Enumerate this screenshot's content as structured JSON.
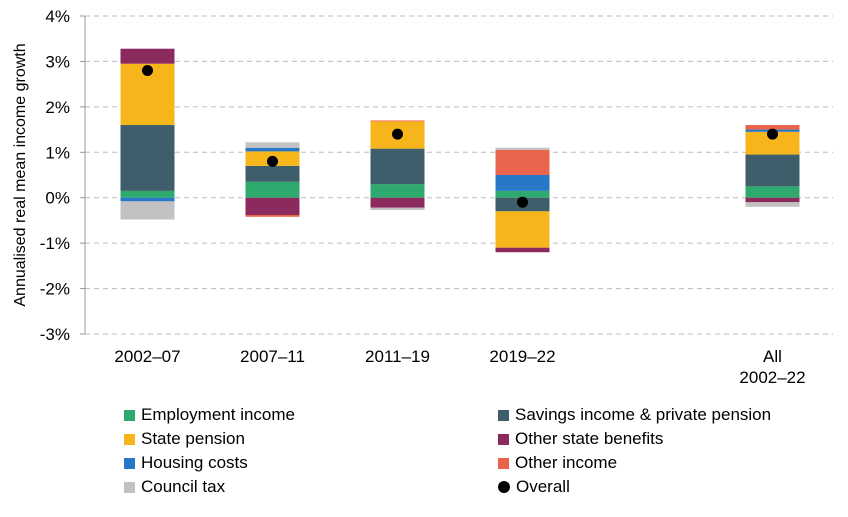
{
  "chart_data": {
    "type": "stacked-bar",
    "title": "",
    "ylabel": "Annualised real mean income growth",
    "xlabel": "",
    "ylim": [
      -3,
      4
    ],
    "yticks": [
      "-3%",
      "-2%",
      "-1%",
      "0%",
      "1%",
      "2%",
      "3%",
      "4%"
    ],
    "ytick_values": [
      -3,
      -2,
      -1,
      0,
      1,
      2,
      3,
      4
    ],
    "grid": true,
    "categories": [
      "2002–07",
      "2007–11",
      "2011–19",
      "2019–22",
      "All\n2002–22"
    ],
    "category_slots": [
      0,
      1,
      2,
      3,
      5
    ],
    "series": [
      {
        "name": "Employment income",
        "color": "#2eaa6e",
        "values": [
          0.15,
          0.35,
          0.3,
          0.15,
          0.25
        ]
      },
      {
        "name": "Savings income & private pension",
        "color": "#3e5e6b",
        "values": [
          1.45,
          0.35,
          0.78,
          -0.3,
          0.7
        ]
      },
      {
        "name": "State pension",
        "color": "#f5b51b",
        "values": [
          1.35,
          0.32,
          0.6,
          -0.8,
          0.5
        ]
      },
      {
        "name": "Other state benefits",
        "color": "#8b2a5c",
        "values": [
          0.33,
          -0.38,
          -0.22,
          -0.1,
          -0.1
        ]
      },
      {
        "name": "Housing costs",
        "color": "#2878c8",
        "values": [
          -0.08,
          0.08,
          0.0,
          0.35,
          0.05
        ]
      },
      {
        "name": "Other income",
        "color": "#e9644a",
        "values": [
          0.0,
          -0.04,
          0.02,
          0.55,
          0.1
        ]
      },
      {
        "name": "Council tax",
        "color": "#c2c2c2",
        "values": [
          -0.4,
          0.12,
          -0.05,
          0.05,
          -0.1
        ]
      }
    ],
    "overall": {
      "name": "Overall",
      "color": "#000000",
      "values": [
        2.8,
        0.8,
        1.4,
        -0.1,
        1.4
      ]
    },
    "legend_position": "bottom"
  }
}
